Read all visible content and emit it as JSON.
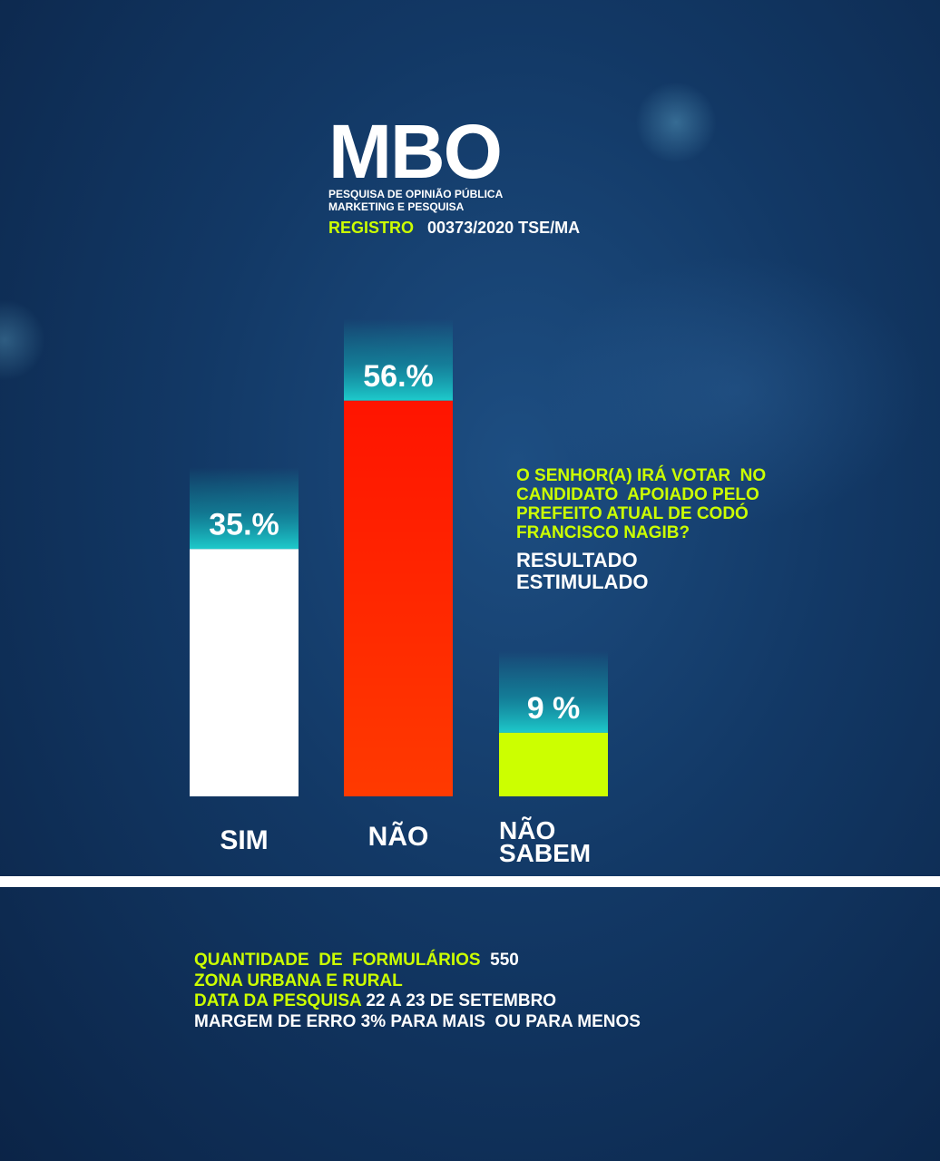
{
  "header": {
    "logo": "MBO",
    "subtitle_line1": "PESQUISA DE OPINIÃO PÚBLICA",
    "subtitle_line2": "MARKETING E PESQUISA",
    "registro_label": "REGISTRO",
    "registro_value": "00373/2020 TSE/MA"
  },
  "question": {
    "line1": "O SENHOR(A) IRÁ VOTAR  NO",
    "line2": "CANDIDATO  APOIADO PELO",
    "line3": "PREFEITO ATUAL DE CODÓ",
    "line4": "FRANCISCO NAGIB?",
    "result_line1": "RESULTADO",
    "result_line2": "ESTIMULADO"
  },
  "chart_data": {
    "type": "bar",
    "categories": [
      "SIM",
      "NÃO",
      "NÃO SABEM"
    ],
    "values": [
      35,
      56,
      9
    ],
    "value_labels": [
      "35.%",
      "56.%",
      "9 %"
    ],
    "colors": [
      "#ffffff",
      "#ff1e00",
      "#ccff00"
    ],
    "unit": "%",
    "grid": false,
    "legend": "none"
  },
  "footer": {
    "forms_label": "QUANTIDADE  DE  FORMULÁRIOS",
    "forms_value": "550",
    "zone": "ZONA URBANA E RURAL",
    "date_label": "DATA DA PESQUISA",
    "date_value": "22 A 23 DE SETEMBRO",
    "margin": "MARGEM DE ERRO 3% PARA MAIS  OU PARA MENOS"
  }
}
